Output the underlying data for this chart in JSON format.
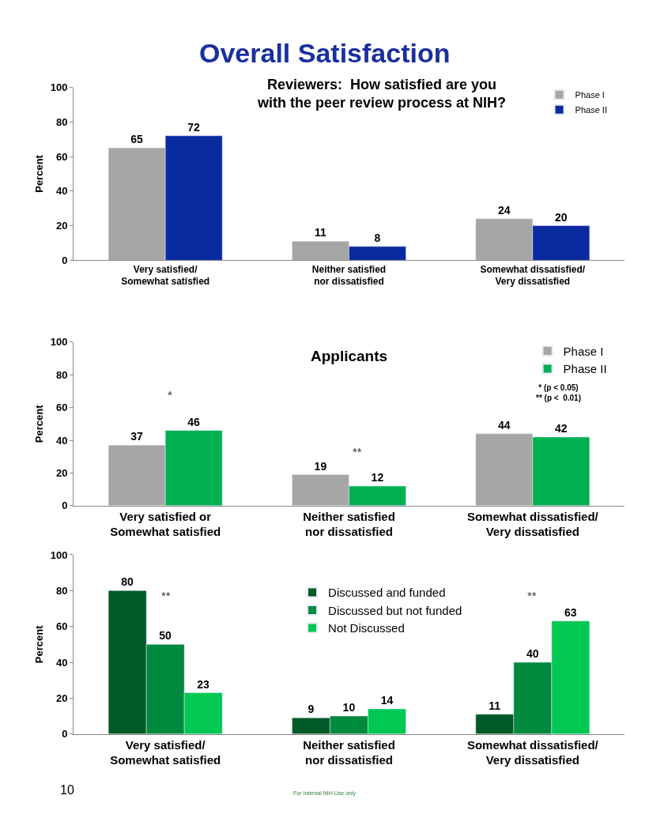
{
  "chart_data": [
    {
      "type": "bar",
      "title": "Overall Satisfaction",
      "subtitle": "Reviewers:  How satisfied are you\nwith the peer review process at NIH?",
      "ylabel": "Percent",
      "categories": [
        "Very satisfied/\nSomewhat satisfied",
        "Neither satisfied\nnor dissatisfied",
        "Somewhat dissatisfied/\nVery dissatisfied"
      ],
      "series": [
        {
          "name": "Phase I",
          "color": "#a6a6a6",
          "values": [
            65,
            11,
            24
          ]
        },
        {
          "name": "Phase II",
          "color": "#0a2aa0",
          "values": [
            72,
            8,
            20
          ]
        }
      ],
      "ylim": [
        0,
        100
      ],
      "yticks": [
        0,
        20,
        40,
        60,
        80,
        100
      ],
      "data_labels": true,
      "legend": "top right"
    },
    {
      "type": "bar",
      "title": "Applicants",
      "ylabel": "Percent",
      "categories": [
        "Very satisfied or\nSomewhat satisfied",
        "Neither satisfied\nnor dissatisfied",
        "Somewhat dissatisfied/\nVery dissatisfied"
      ],
      "series": [
        {
          "name": "Phase I",
          "color": "#a6a6a6",
          "values": [
            37,
            19,
            44
          ]
        },
        {
          "name": "Phase II",
          "color": "#00b050",
          "values": [
            46,
            12,
            42
          ]
        }
      ],
      "ylim": [
        0,
        100
      ],
      "yticks": [
        0,
        20,
        40,
        60,
        80,
        100
      ],
      "data_labels": true,
      "legend": "top right",
      "annotations": [
        "*",
        "**",
        "* (p < 0.05)\n** (p <  0.01)"
      ]
    },
    {
      "type": "bar",
      "ylabel": "Percent",
      "categories": [
        "Very satisfied/\nSomewhat satisfied",
        "Neither satisfied\nnor dissatisfied",
        "Somewhat dissatisfied/\nVery dissatisfied"
      ],
      "series": [
        {
          "name": "Discussed and funded",
          "color": "#005a28",
          "values": [
            80,
            9,
            11
          ]
        },
        {
          "name": "Discussed but not funded",
          "color": "#008a3e",
          "values": [
            50,
            10,
            40
          ]
        },
        {
          "name": "Not Discussed",
          "color": "#00c853",
          "values": [
            23,
            14,
            63
          ]
        }
      ],
      "ylim": [
        0,
        100
      ],
      "yticks": [
        0,
        20,
        40,
        60,
        80,
        100
      ],
      "data_labels": true,
      "legend": "top",
      "annotations": [
        "**",
        "**",
        "10",
        "For Internal NIH Use only"
      ]
    }
  ]
}
